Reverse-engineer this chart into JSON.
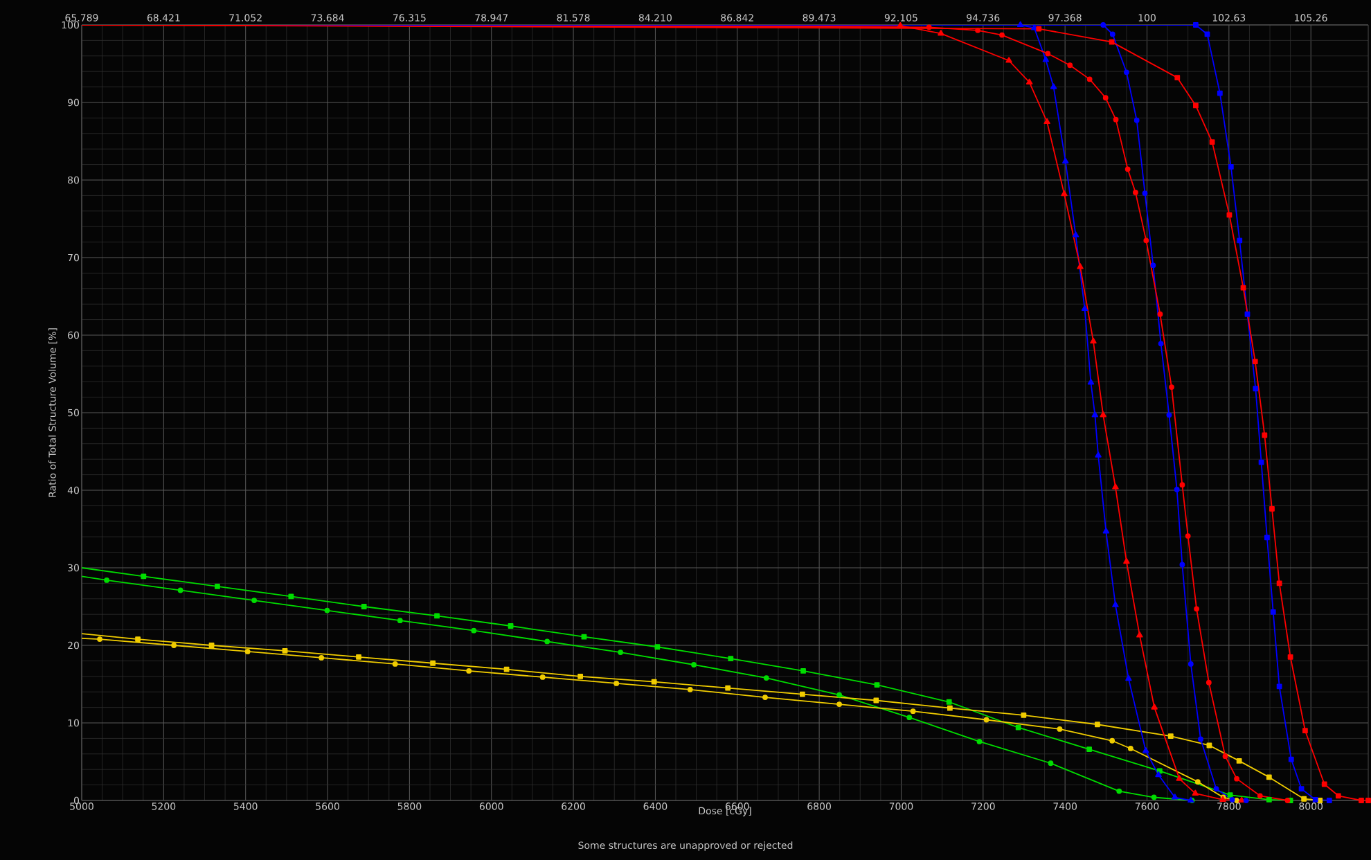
{
  "chart_data": {
    "type": "line",
    "xlabel": "Dose [cGy]",
    "ylabel": "Ratio of Total Structure Volume [%]",
    "annotations": [
      "Some structures are unapproved or rejected"
    ],
    "xlim": [
      5000,
      8140
    ],
    "ylim": [
      0,
      100
    ],
    "xticks": [
      5000,
      5200,
      5400,
      5600,
      5800,
      6000,
      6200,
      6400,
      6600,
      6800,
      7000,
      7200,
      7400,
      7600,
      7800,
      8000
    ],
    "yticks": [
      0,
      10,
      20,
      30,
      40,
      50,
      60,
      70,
      80,
      90,
      100
    ],
    "x2lim": [
      65.789,
      107.105
    ],
    "x2ticks": [
      65.789,
      68.421,
      71.052,
      73.684,
      76.315,
      78.947,
      81.578,
      {
        "value": 84.21,
        "label": "84.210"
      },
      86.842,
      89.473,
      92.105,
      94.736,
      97.368,
      100,
      102.63,
      105.26
    ],
    "grid": true,
    "line_style": "solid",
    "series": [
      {
        "color": "#00dd00",
        "marker": "square",
        "x": [
          5000,
          5151,
          5331,
          5511,
          5689,
          5867,
          6047,
          6226,
          6405,
          6584,
          6761,
          6941,
          7117,
          7286,
          7459,
          7631,
          7803,
          7898,
          7950
        ],
        "values": [
          30.0,
          28.9,
          27.6,
          26.3,
          25.0,
          23.8,
          22.5,
          21.1,
          19.8,
          18.3,
          16.7,
          14.9,
          12.7,
          9.4,
          6.6,
          3.8,
          0.7,
          0.1,
          0
        ]
      },
      {
        "color": "#00dd00",
        "marker": "circle",
        "x": [
          5000,
          5061,
          5241,
          5421,
          5599,
          5777,
          5957,
          6136,
          6315,
          6494,
          6671,
          6849,
          7020,
          7191,
          7365,
          7532,
          7617,
          7710
        ],
        "values": [
          28.9,
          28.4,
          27.1,
          25.8,
          24.5,
          23.2,
          21.9,
          20.5,
          19.1,
          17.5,
          15.8,
          13.6,
          10.7,
          7.6,
          4.8,
          1.2,
          0.4,
          0
        ]
      },
      {
        "color": "#f0cc00",
        "marker": "square",
        "x": [
          5000,
          5137,
          5317,
          5496,
          5676,
          5857,
          6037,
          6217,
          6397,
          6577,
          6759,
          6939,
          7119,
          7299,
          7479,
          7658,
          7752,
          7825,
          7898,
          7983,
          8022
        ],
        "values": [
          21.5,
          20.8,
          20.0,
          19.3,
          18.5,
          17.7,
          16.9,
          16.0,
          15.3,
          14.5,
          13.7,
          12.9,
          11.9,
          11.0,
          9.8,
          8.3,
          7.1,
          5.1,
          3.0,
          0.2,
          0
        ]
      },
      {
        "color": "#f0cc00",
        "marker": "circle",
        "x": [
          5000,
          5044,
          5225,
          5405,
          5585,
          5765,
          5945,
          6125,
          6305,
          6485,
          6668,
          6849,
          7029,
          7208,
          7387,
          7515,
          7560,
          7724,
          7786,
          7819
        ],
        "values": [
          20.9,
          20.8,
          20.0,
          19.2,
          18.4,
          17.6,
          16.7,
          15.9,
          15.1,
          14.3,
          13.3,
          12.4,
          11.5,
          10.4,
          9.2,
          7.7,
          6.7,
          2.4,
          0.4,
          0
        ]
      },
      {
        "color": "#0000ff",
        "marker": "triangle",
        "x": [
          5000,
          7291,
          7325,
          7353,
          7372,
          7401,
          7426,
          7448,
          7463,
          7473,
          7481,
          7500,
          7523,
          7555,
          7597,
          7628,
          7668,
          7707
        ],
        "values": [
          100,
          100,
          99.6,
          95.5,
          92.0,
          82.4,
          72.9,
          63.4,
          53.9,
          49.7,
          44.5,
          34.7,
          25.2,
          15.7,
          6.4,
          3.3,
          0.4,
          0
        ]
      },
      {
        "color": "#ff0000",
        "marker": "triangle",
        "x": [
          5000,
          6998,
          7097,
          7263,
          7313,
          7356,
          7398,
          7437,
          7469,
          7493,
          7523,
          7550,
          7582,
          7618,
          7679,
          7718,
          7785,
          7831
        ],
        "values": [
          100,
          99.9,
          98.9,
          95.4,
          92.6,
          87.5,
          78.2,
          68.8,
          59.2,
          49.7,
          40.4,
          30.8,
          21.3,
          12.0,
          2.8,
          0.9,
          0.1,
          0
        ]
      },
      {
        "color": "#0000ff",
        "marker": "circle",
        "x": [
          5000,
          7493,
          7516,
          7550,
          7575,
          7595,
          7615,
          7634,
          7654,
          7673,
          7686,
          7707,
          7731,
          7769,
          7808,
          7842
        ],
        "values": [
          100,
          100,
          98.8,
          93.9,
          87.7,
          78.3,
          69.0,
          58.9,
          49.7,
          40.1,
          30.4,
          17.6,
          7.9,
          1.5,
          0.1,
          0
        ]
      },
      {
        "color": "#ff0000",
        "marker": "circle",
        "x": [
          5000,
          7068,
          7187,
          7246,
          7358,
          7412,
          7460,
          7499,
          7524,
          7553,
          7572,
          7598,
          7632,
          7660,
          7686,
          7700,
          7721,
          7751,
          7791,
          7819,
          7876,
          7943
        ],
        "values": [
          100,
          99.7,
          99.3,
          98.7,
          96.3,
          94.8,
          93.0,
          90.6,
          87.8,
          81.4,
          78.4,
          72.2,
          62.7,
          53.3,
          40.7,
          34.1,
          24.7,
          15.2,
          5.7,
          2.8,
          0.6,
          0
        ]
      },
      {
        "color": "#0000ff",
        "marker": "square",
        "x": [
          5000,
          7719,
          7747,
          7778,
          7805,
          7826,
          7845,
          7865,
          7879,
          7893,
          7908,
          7923,
          7952,
          7977,
          8011,
          8045
        ],
        "values": [
          100,
          100,
          98.8,
          91.2,
          81.7,
          72.2,
          62.7,
          53.1,
          43.6,
          33.9,
          24.3,
          14.7,
          5.3,
          1.5,
          0.1,
          0
        ]
      },
      {
        "color": "#ff0000",
        "marker": "square",
        "x": [
          5000,
          7336,
          7514,
          7674,
          7719,
          7759,
          7801,
          7835,
          7864,
          7887,
          7905,
          7923,
          7950,
          7986,
          8033,
          8067,
          8123,
          8140
        ],
        "values": [
          100,
          99.5,
          97.8,
          93.2,
          89.6,
          84.9,
          75.5,
          66.1,
          56.6,
          47.1,
          37.6,
          28.0,
          18.5,
          9.0,
          2.1,
          0.6,
          0,
          0
        ]
      }
    ]
  }
}
